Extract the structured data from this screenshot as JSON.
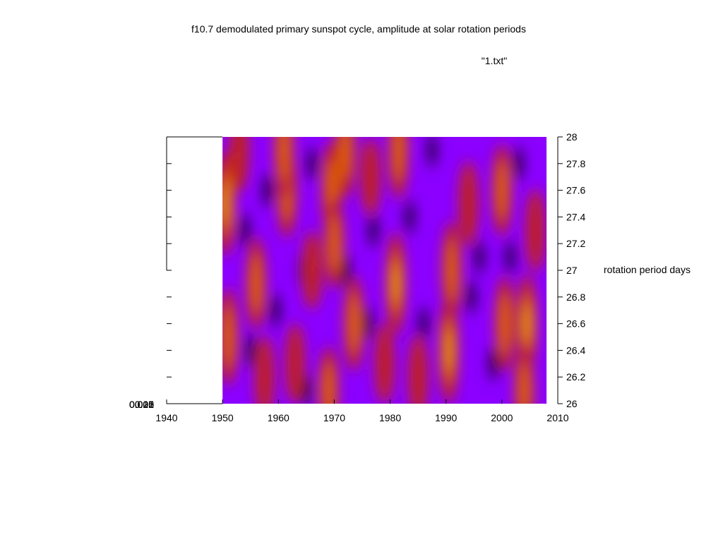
{
  "chart_data": {
    "type": "heatmap",
    "title": "f10.7 demodulated primary sunspot cycle, amplitude at solar rotation periods",
    "legend": {
      "entries": [
        "\"1.txt\""
      ],
      "position": "top-right"
    },
    "xlabel": "",
    "ylabel": "rotation period days",
    "xlim": [
      1940,
      2010
    ],
    "ylim": [
      26,
      28
    ],
    "x_ticks": [
      "1940",
      "1950",
      "1960",
      "1970",
      "1980",
      "1990",
      "2000",
      "2010"
    ],
    "y_ticks": [
      "26",
      "26.2",
      "26.4",
      "26.6",
      "26.8",
      "27",
      "27.2",
      "27.4",
      "27.6",
      "27.8",
      "28"
    ],
    "z_ticks_overlapping": [
      "0",
      "0.005",
      "0.01",
      "0.015",
      "0.02",
      "0.025"
    ],
    "x_data_range": [
      1950,
      2008
    ],
    "grid": false,
    "colormap": [
      "#000000",
      "#4b0082",
      "#8b00ff",
      "#c02020",
      "#e06000",
      "#f0a000"
    ],
    "hotspots": [
      {
        "x": 1950.5,
        "y": 27.5,
        "value": 0.95
      },
      {
        "x": 1951.0,
        "y": 26.5,
        "value": 0.8
      },
      {
        "x": 1953.0,
        "y": 27.9,
        "value": 0.5
      },
      {
        "x": 1956.0,
        "y": 26.9,
        "value": 0.7
      },
      {
        "x": 1957.5,
        "y": 26.2,
        "value": 0.5
      },
      {
        "x": 1961.5,
        "y": 27.6,
        "value": 0.75
      },
      {
        "x": 1961.0,
        "y": 27.9,
        "value": 0.8
      },
      {
        "x": 1963.0,
        "y": 26.3,
        "value": 0.45
      },
      {
        "x": 1966.0,
        "y": 27.0,
        "value": 0.4
      },
      {
        "x": 1969.5,
        "y": 27.6,
        "value": 0.8
      },
      {
        "x": 1970.0,
        "y": 27.2,
        "value": 0.65
      },
      {
        "x": 1972.0,
        "y": 27.9,
        "value": 0.75
      },
      {
        "x": 1973.5,
        "y": 26.6,
        "value": 0.75
      },
      {
        "x": 1969.0,
        "y": 26.1,
        "value": 0.6
      },
      {
        "x": 1976.5,
        "y": 27.7,
        "value": 0.4
      },
      {
        "x": 1981.0,
        "y": 26.9,
        "value": 0.9
      },
      {
        "x": 1981.5,
        "y": 27.9,
        "value": 0.8
      },
      {
        "x": 1979.0,
        "y": 26.3,
        "value": 0.45
      },
      {
        "x": 1985.0,
        "y": 26.2,
        "value": 0.55
      },
      {
        "x": 1990.5,
        "y": 26.4,
        "value": 1.0
      },
      {
        "x": 1991.0,
        "y": 27.0,
        "value": 0.8
      },
      {
        "x": 1994.0,
        "y": 27.5,
        "value": 0.55
      },
      {
        "x": 2000.0,
        "y": 27.6,
        "value": 0.7
      },
      {
        "x": 2000.5,
        "y": 26.6,
        "value": 0.75
      },
      {
        "x": 2004.5,
        "y": 26.6,
        "value": 0.85
      },
      {
        "x": 2006.0,
        "y": 27.3,
        "value": 0.5
      },
      {
        "x": 2004.0,
        "y": 26.1,
        "value": 0.6
      }
    ],
    "lowspots": [
      {
        "x": 1954.0,
        "y": 27.3
      },
      {
        "x": 1955.0,
        "y": 26.4
      },
      {
        "x": 1958.0,
        "y": 27.6
      },
      {
        "x": 1959.5,
        "y": 26.7
      },
      {
        "x": 1964.5,
        "y": 27.0
      },
      {
        "x": 1965.0,
        "y": 26.1
      },
      {
        "x": 1966.0,
        "y": 27.8
      },
      {
        "x": 1972.0,
        "y": 27.0
      },
      {
        "x": 1976.0,
        "y": 26.6
      },
      {
        "x": 1977.0,
        "y": 27.3
      },
      {
        "x": 1983.5,
        "y": 27.4
      },
      {
        "x": 1986.0,
        "y": 26.6
      },
      {
        "x": 1987.5,
        "y": 27.9
      },
      {
        "x": 1994.5,
        "y": 26.8
      },
      {
        "x": 1996.0,
        "y": 27.1
      },
      {
        "x": 1998.5,
        "y": 26.3
      },
      {
        "x": 2001.5,
        "y": 27.1
      },
      {
        "x": 2003.0,
        "y": 27.8
      }
    ]
  }
}
